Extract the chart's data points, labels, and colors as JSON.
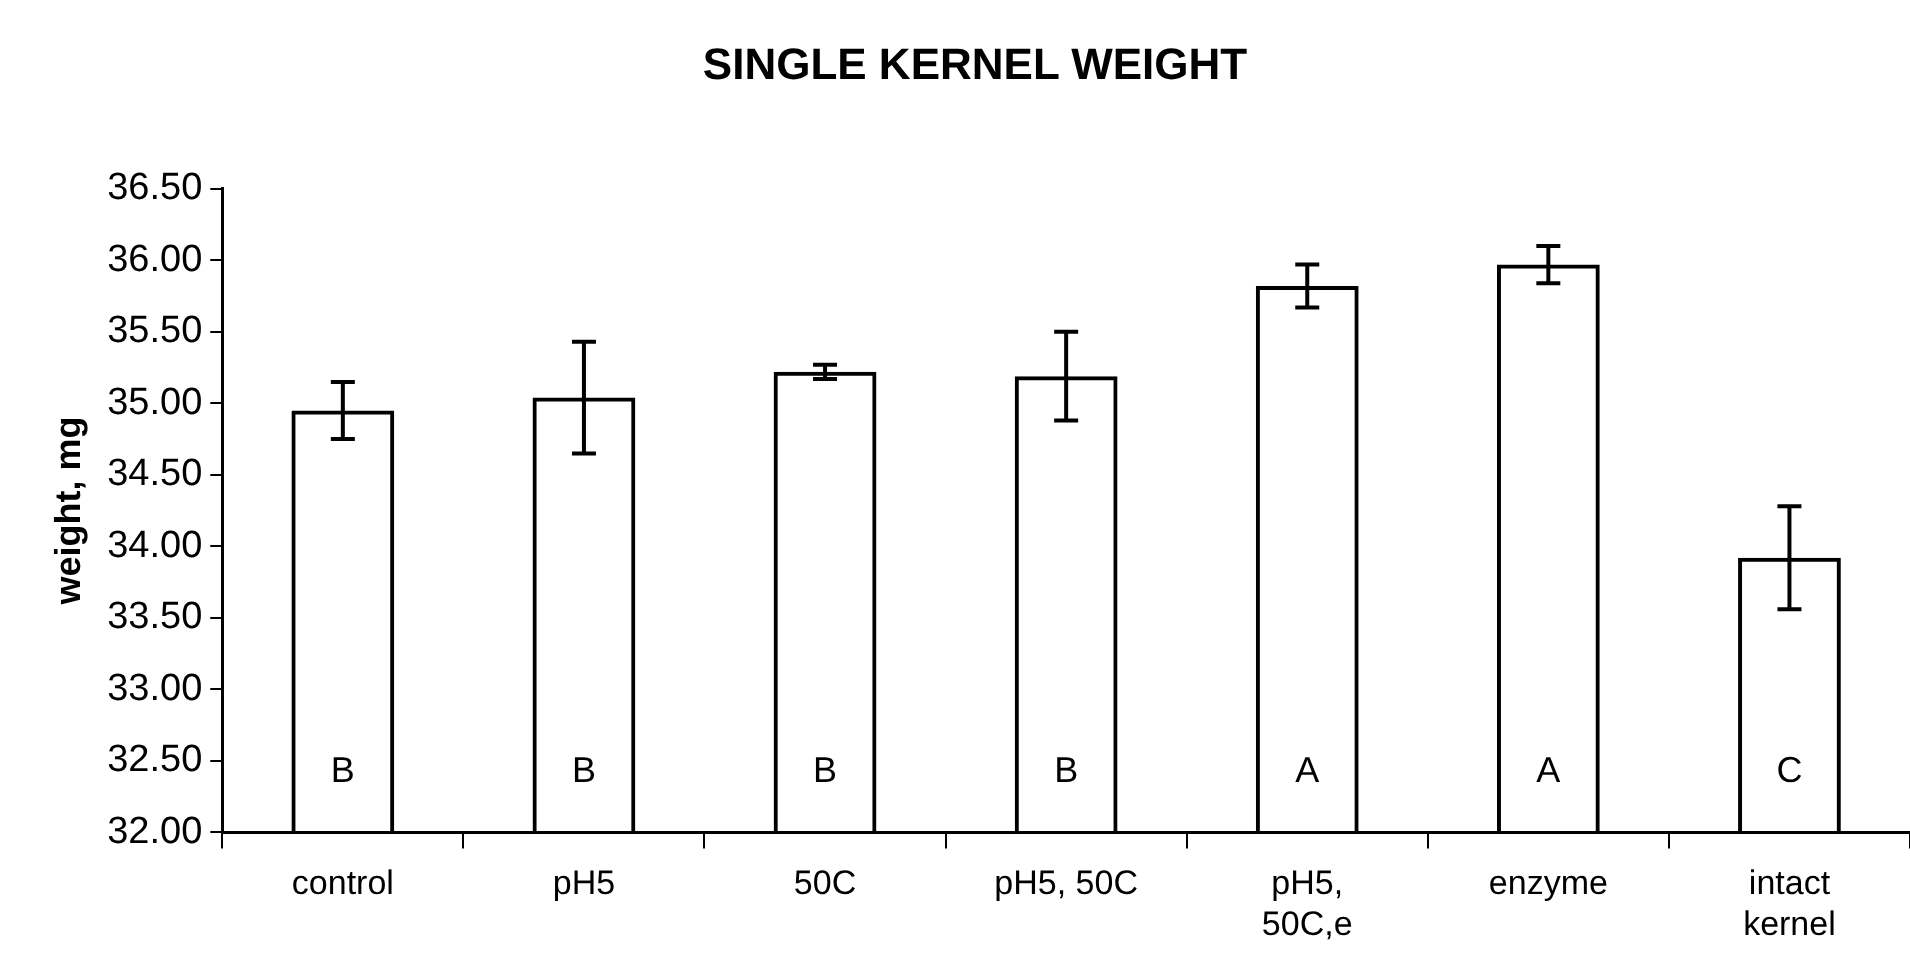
{
  "chart_data": {
    "type": "bar",
    "title": "SINGLE KERNEL WEIGHT",
    "ylabel": "weight, mg",
    "categories": [
      "control",
      "pH5",
      "50C",
      "pH5, 50C",
      "pH5, 50C,e",
      "enzyme",
      "intact kernel"
    ],
    "values": [
      34.95,
      35.04,
      35.22,
      35.19,
      35.82,
      35.97,
      33.92
    ],
    "errors": [
      0.2,
      0.39,
      0.05,
      0.31,
      0.15,
      0.13,
      0.36
    ],
    "color": "#000000",
    "ylim": [
      32,
      36.5
    ],
    "yticks": [
      {
        "value": 32,
        "label": "32.00"
      },
      {
        "value": 32.5,
        "label": "32.50"
      },
      {
        "value": 33,
        "label": "33.00"
      },
      {
        "value": 33.5,
        "label": "33.50"
      },
      {
        "value": 34,
        "label": "34.00"
      },
      {
        "value": 34.5,
        "label": "34.50"
      },
      {
        "value": 35,
        "label": "35.00"
      },
      {
        "value": 35.5,
        "label": "35.50"
      },
      {
        "value": 36,
        "label": "36.00"
      },
      {
        "value": 36.5,
        "label": "36.50"
      }
    ],
    "grid": false,
    "legend": false,
    "annotations": [
      "B",
      "B",
      "B",
      "B",
      "A",
      "A",
      "C"
    ]
  }
}
